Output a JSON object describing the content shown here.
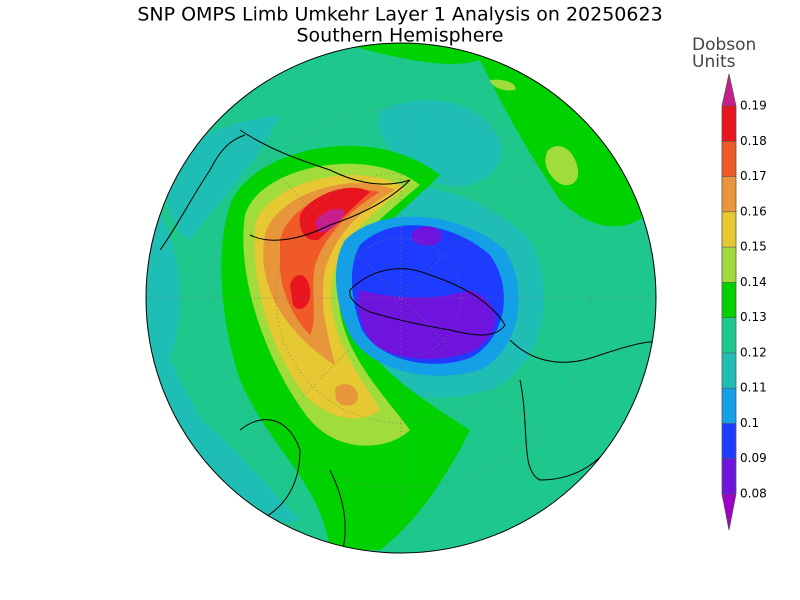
{
  "map": {
    "title": "SNP OMPS Limb Umkehr Layer 1 Analysis on 20250623",
    "subtitle": "Southern Hemisphere",
    "colorbar": {
      "label_lines": [
        "Dobson",
        "Units"
      ],
      "clim": [
        0.08,
        0.19
      ],
      "ticks": [
        0.19,
        0.18,
        0.17,
        0.16,
        0.15,
        0.14,
        0.13,
        0.12,
        0.11,
        0.1,
        0.09,
        0.08
      ],
      "colors": [
        "#a000c8",
        "#6e14dc",
        "#1e3cff",
        "#14a0e6",
        "#1ebeb4",
        "#1ec88c",
        "#00d200",
        "#a0dc3c",
        "#e6c832",
        "#e8963c",
        "#f05a28",
        "#e8141e",
        "#c81e8c"
      ]
    }
  }
}
